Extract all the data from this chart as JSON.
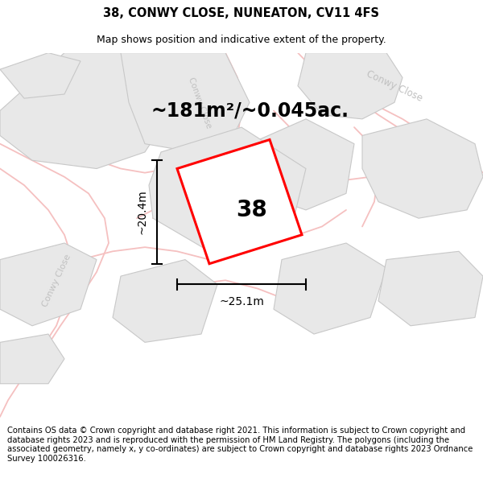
{
  "title": "38, CONWY CLOSE, NUNEATON, CV11 4FS",
  "subtitle": "Map shows position and indicative extent of the property.",
  "area_text": "~181m²/~0.045ac.",
  "number_label": "38",
  "width_label": "~25.1m",
  "height_label": "~20.4m",
  "footer": "Contains OS data © Crown copyright and database right 2021. This information is subject to Crown copyright and database rights 2023 and is reproduced with the permission of HM Land Registry. The polygons (including the associated geometry, namely x, y co-ordinates) are subject to Crown copyright and database rights 2023 Ordnance Survey 100026316.",
  "bg_color": "#ffffff",
  "road_color": "#f5c0c0",
  "highlight_color": "#ff0000",
  "plot_color": "#e8e8e8",
  "plot_edge_color": "#c8c8c8",
  "road_label_color": "#c0c0c0",
  "title_fontsize": 10.5,
  "subtitle_fontsize": 9,
  "area_fontsize": 17,
  "number_fontsize": 20,
  "dim_fontsize": 10,
  "footer_fontsize": 7.2
}
